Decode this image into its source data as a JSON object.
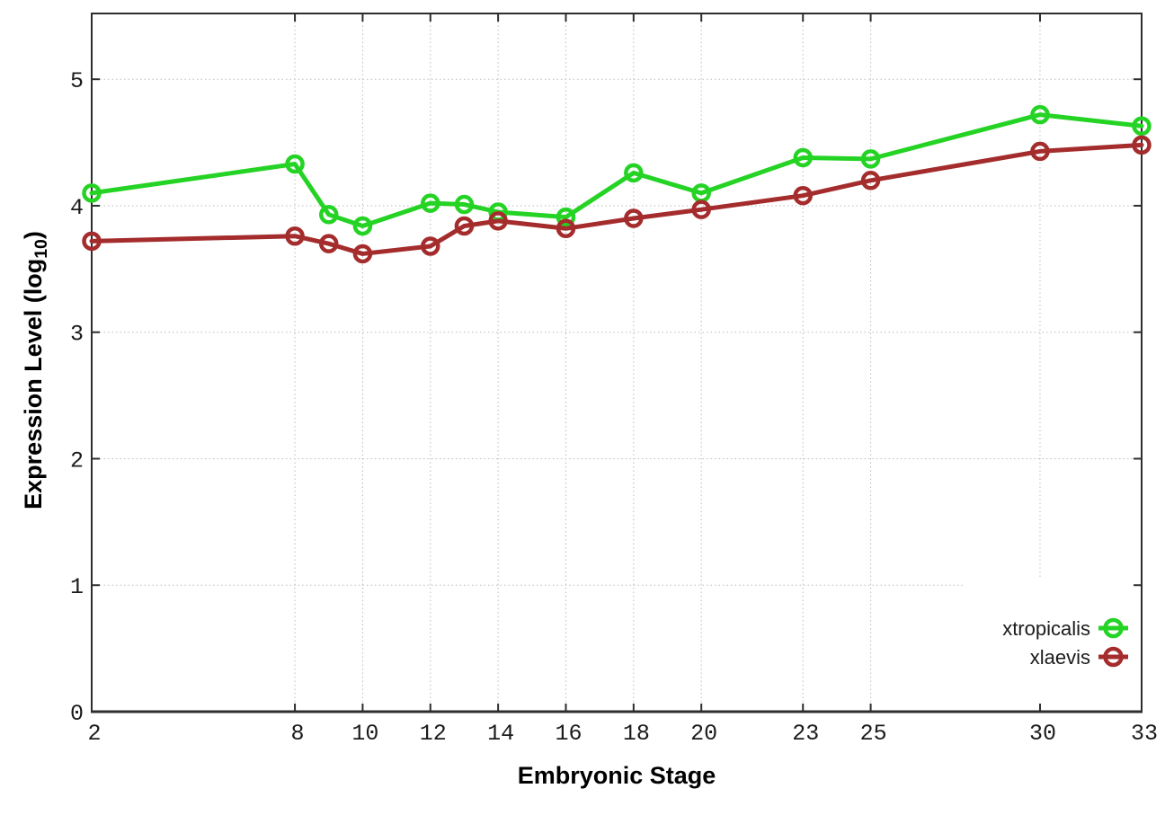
{
  "figure": {
    "background": "#ffffff",
    "xlabel": "Embryonic Stage",
    "ylabel_prefix": "Expression Level (log",
    "ylabel_sub": "10",
    "ylabel_suffix": ")"
  },
  "chart_data": {
    "type": "line",
    "title": "",
    "xlabel": "Embryonic Stage",
    "ylabel": "Expression Level (log10)",
    "grid": true,
    "legend_position": "bottom-right",
    "legend_opaque": true,
    "xlim": [
      2,
      33
    ],
    "ylim": [
      0,
      5.52
    ],
    "x": [
      2,
      8,
      9,
      10,
      12,
      13,
      14,
      16,
      18,
      20,
      23,
      25,
      30,
      33
    ],
    "x_tick_values": [
      2,
      8,
      10,
      12,
      14,
      16,
      18,
      20,
      23,
      25,
      30,
      33
    ],
    "x_tick_labels": [
      "2",
      "8",
      "10",
      "12",
      "14",
      "16",
      "18",
      "20",
      "23",
      "25",
      "30",
      "33"
    ],
    "y_ticks": [
      0,
      1,
      2,
      3,
      4,
      5
    ],
    "y_tick_labels": [
      "0",
      "1",
      "2",
      "3",
      "4",
      "5"
    ],
    "series": [
      {
        "name": "xtropicalis",
        "color": "#24d324",
        "marker": "open-circle",
        "values": [
          4.1,
          4.33,
          3.93,
          3.84,
          4.02,
          4.01,
          3.95,
          3.91,
          4.26,
          4.1,
          4.38,
          4.37,
          4.72,
          4.63
        ]
      },
      {
        "name": "xlaevis",
        "color": "#a52c2c",
        "marker": "open-circle",
        "values": [
          3.72,
          3.76,
          3.7,
          3.62,
          3.68,
          3.84,
          3.88,
          3.82,
          3.9,
          3.97,
          4.08,
          4.2,
          4.43,
          4.48
        ]
      }
    ],
    "colors": {
      "border": "#2d2d2d",
      "gridline": "#bcbcbc",
      "tick_text": "#1b1b1b",
      "legend_background": "#ffffff"
    }
  }
}
